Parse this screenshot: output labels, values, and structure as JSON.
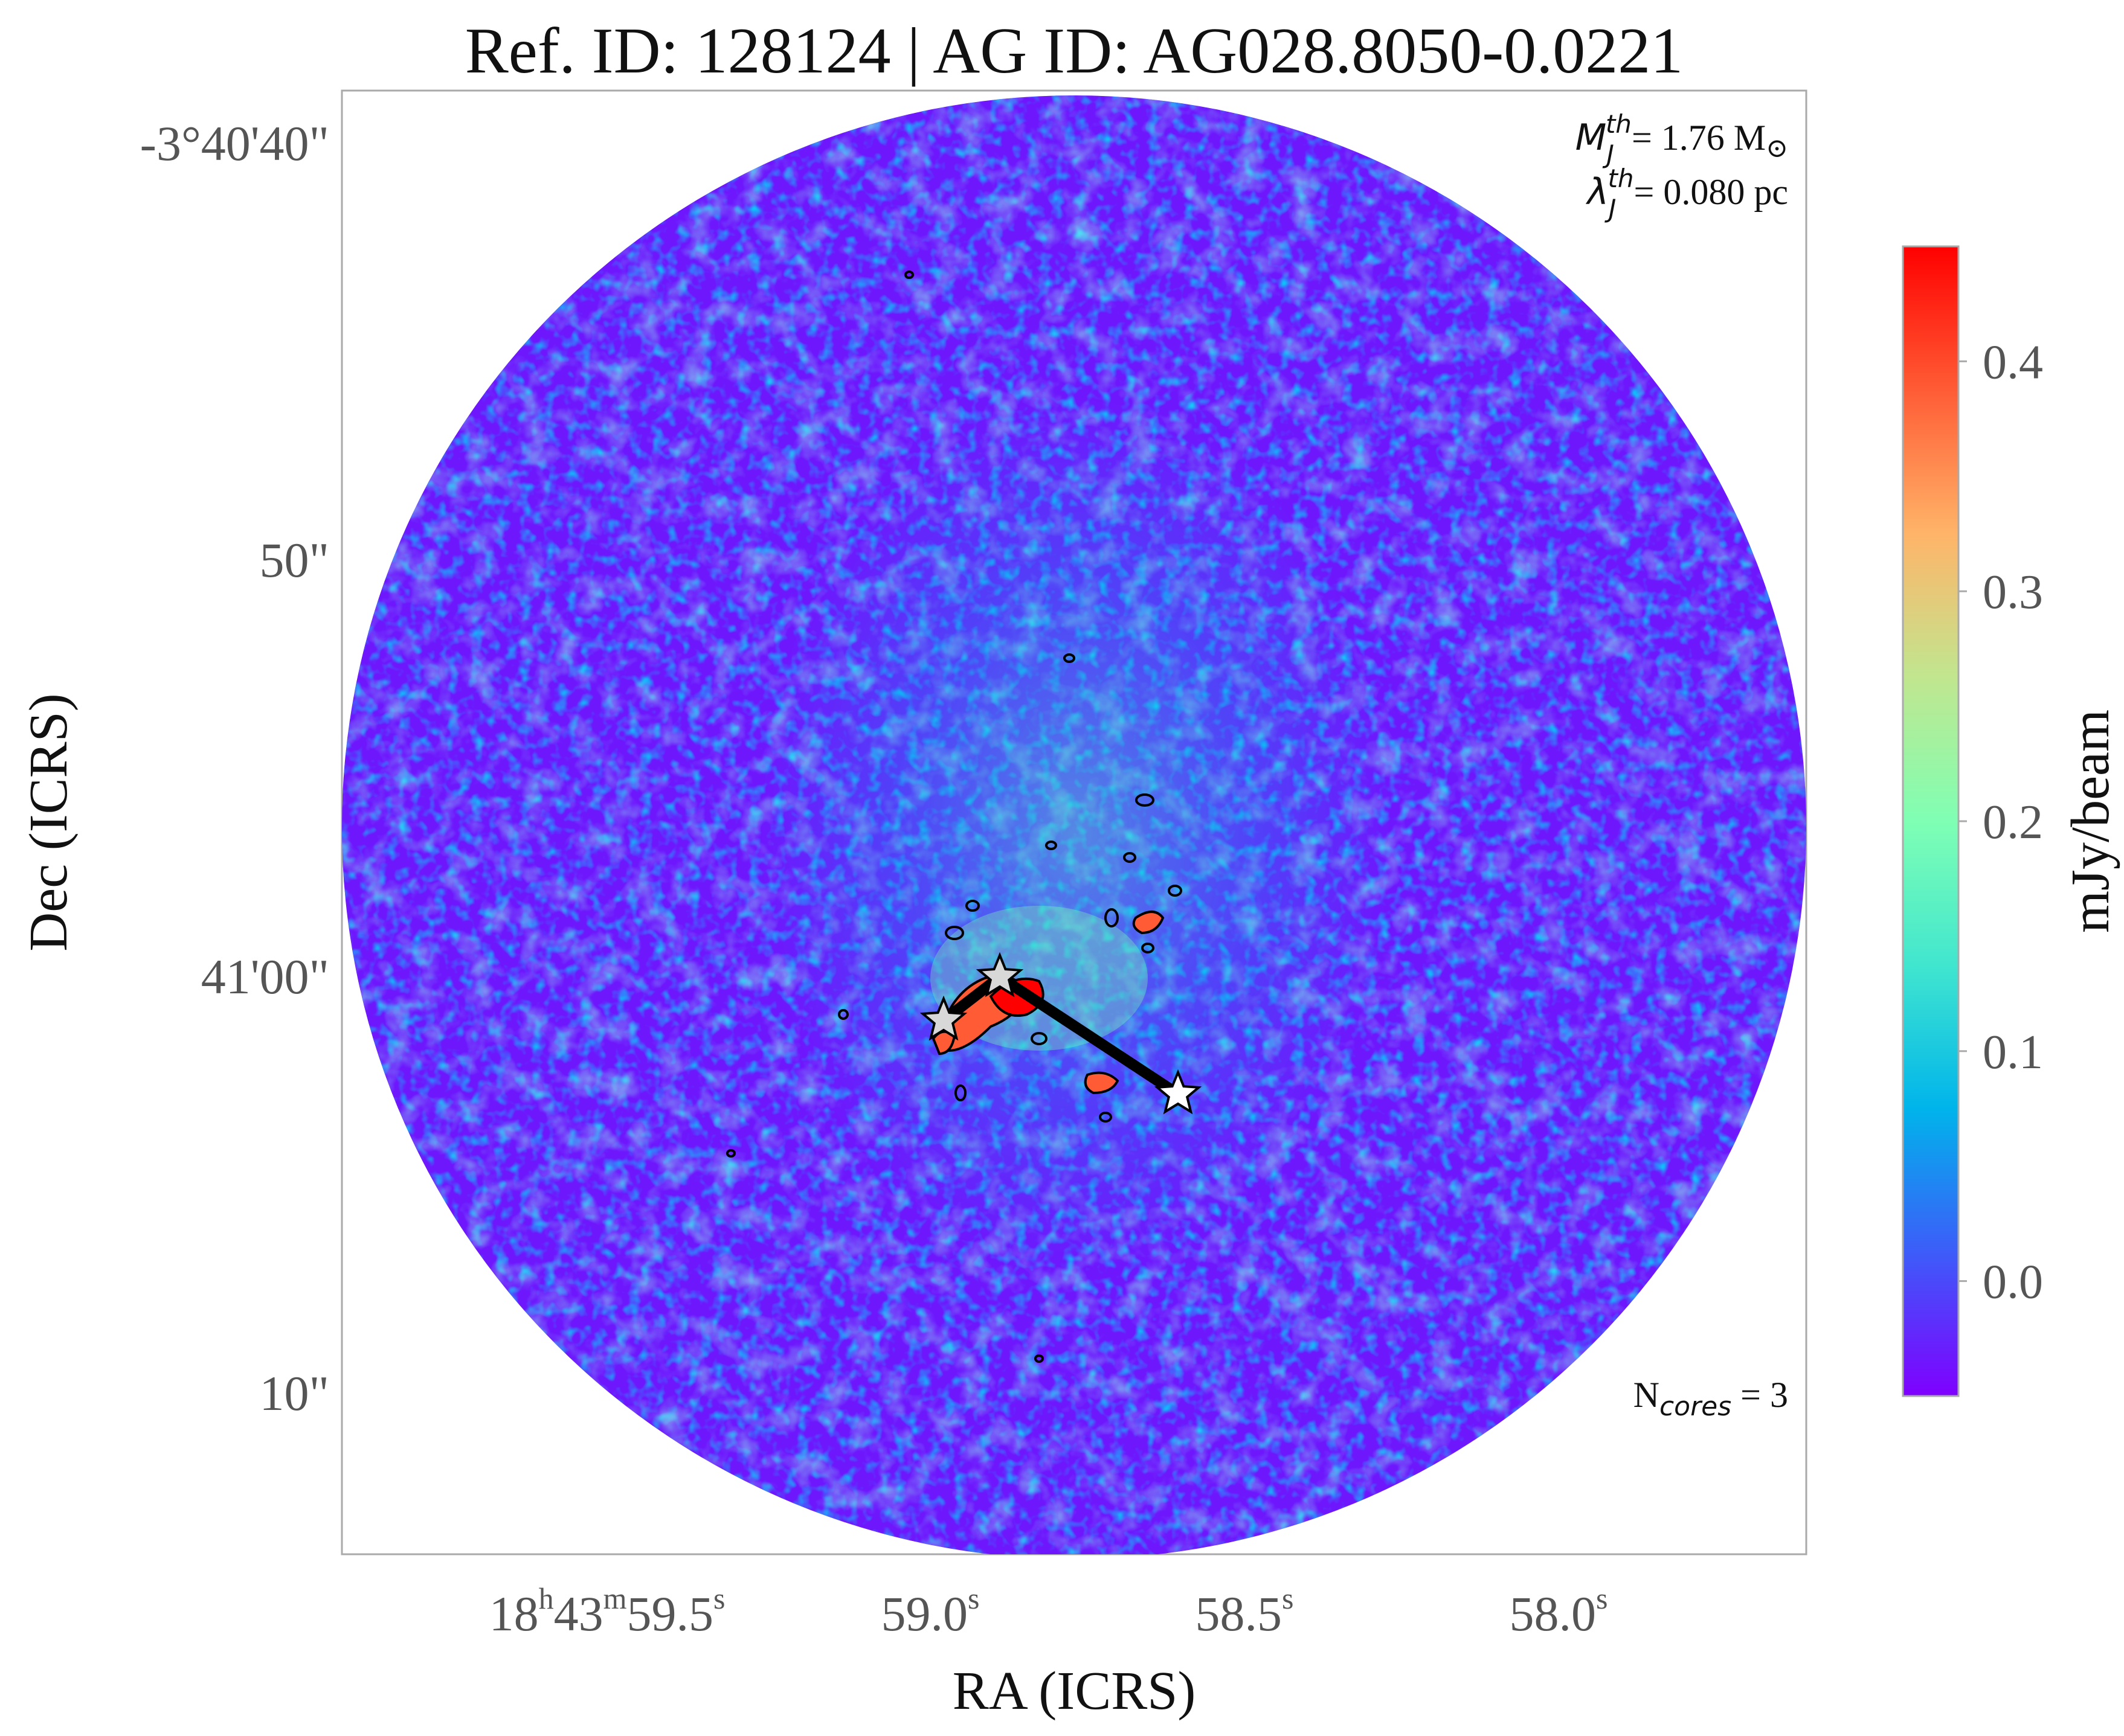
{
  "chart_data": {
    "type": "heatmap",
    "title": "Ref. ID: 128124 | AG ID: AG028.8050-0.0221",
    "xlabel": "RA (ICRS)",
    "ylabel": "Dec (ICRS)",
    "x_ticks": [
      {
        "h": "18",
        "m": "43",
        "s": "59.5",
        "label_parts": [
          "18",
          "h",
          "43",
          "m",
          "59.5",
          "s"
        ]
      },
      {
        "s": "59.0",
        "label_parts": [
          "",
          "",
          "",
          "",
          "59.0",
          "s"
        ]
      },
      {
        "s": "58.5",
        "label_parts": [
          "",
          "",
          "",
          "",
          "58.5",
          "s"
        ]
      },
      {
        "s": "58.0",
        "label_parts": [
          "",
          "",
          "",
          "",
          "58.0",
          "s"
        ]
      }
    ],
    "y_ticks": [
      "-3°40'40\"",
      "50\"",
      "41'00\"",
      "10\""
    ],
    "colorbar": {
      "label": "mJy/beam",
      "ticks": [
        "0.0",
        "0.1",
        "0.2",
        "0.3",
        "0.4"
      ],
      "range": [
        -0.05,
        0.45
      ],
      "colormap": "rainbow",
      "colors": [
        "#7f00ff",
        "#3d5cf9",
        "#00b4eb",
        "#41e6cf",
        "#7fffb4",
        "#c1e68f",
        "#ffb469",
        "#ff5c35",
        "#ff0000"
      ]
    },
    "annotations": {
      "jeans_mass_symbol": "M",
      "jeans_mass_sub": "J",
      "jeans_mass_sup": "th",
      "jeans_mass_value": "= 1.76 M",
      "sun_symbol": "⊙",
      "jeans_length_symbol": "λ",
      "jeans_length_sub": "J",
      "jeans_length_sup": "th",
      "jeans_length_value": "= 0.080 pc",
      "ncores_prefix": "N",
      "ncores_sub": "cores",
      "ncores_value": " = 3"
    },
    "cores": [
      {
        "ra": "18:43:58.93",
        "dec": "-3:41:00.2"
      },
      {
        "ra": "18:43:58.98",
        "dec": "-3:41:01.4"
      },
      {
        "ra": "18:43:58.59",
        "dec": "-3:41:03.2"
      }
    ],
    "ncores": 3,
    "grid": false,
    "contours": true
  }
}
